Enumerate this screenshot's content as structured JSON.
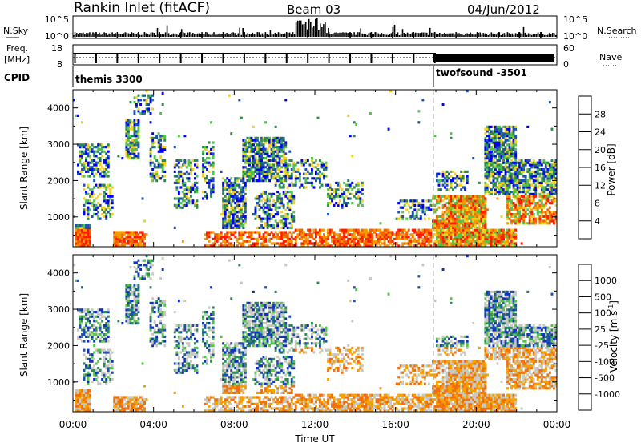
{
  "header": {
    "station": "Rankin Inlet (fitACF)",
    "beam": "Beam 03",
    "date": "04/Jun/2012"
  },
  "top_panels": {
    "nsky_label": "N.Sky",
    "nsky_ticks": [
      "10^5",
      "10^0"
    ],
    "nsearch_label": "N.Search",
    "nsearch_ticks": [
      "10^5",
      "10^0"
    ],
    "freq_label_1": "Freq.",
    "freq_label_2": "[MHz]",
    "freq_ticks": [
      "18",
      "8"
    ],
    "nave_label": "Nave",
    "nave_ticks": [
      "60",
      "0"
    ],
    "cpid_label": "CPID",
    "cpid_segments": [
      {
        "name": "themis 3300",
        "start": "00:00",
        "end": "18:00"
      },
      {
        "name": "twofsound -3501",
        "start": "18:00",
        "end": "24:00"
      }
    ]
  },
  "x_axis": {
    "title": "Time UT",
    "ticks": [
      "00:00",
      "04:00",
      "08:00",
      "12:00",
      "16:00",
      "20:00",
      "00:00"
    ]
  },
  "chart_data": [
    {
      "type": "heatmap",
      "parameter": "Power",
      "ylabel": "Slant Range [km]",
      "xlabel": "Time UT",
      "yticks": [
        1000,
        2000,
        3000,
        4000
      ],
      "ylim": [
        180,
        4500
      ],
      "xlim": [
        0,
        24
      ],
      "colorbar_label": "Power [dB]",
      "colorbar_ticks": [
        "28",
        "24",
        "20",
        "16",
        "12",
        "8",
        "4"
      ],
      "colorbar_colors": [
        "#0000ff",
        "#1f4fb0",
        "#2c8a4f",
        "#55c24c",
        "#f0d020",
        "#f59a00",
        "#f06400",
        "#ff1a00"
      ]
    },
    {
      "type": "heatmap",
      "parameter": "Velocity",
      "ylabel": "Slant Range [km]",
      "xlabel": "Time UT",
      "yticks": [
        1000,
        2000,
        3000,
        4000
      ],
      "ylim": [
        180,
        4500
      ],
      "xlim": [
        0,
        24
      ],
      "colorbar_label": "Velocity [m s^-1]",
      "colorbar_ticks": [
        "1000",
        "500",
        "100",
        "25",
        "-25",
        "-100",
        "-500",
        "-1000"
      ],
      "colorbar_colors": [
        "#ff0000",
        "#f04000",
        "#f07010",
        "#f5a000",
        "#c8c8c0",
        "#55c24c",
        "#2e8b57",
        "#1f4fb0",
        "#1030c0"
      ]
    }
  ]
}
